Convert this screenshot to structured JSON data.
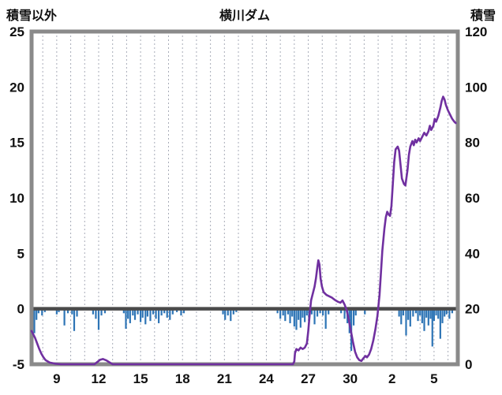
{
  "header": {
    "left_axis_title": "積雪以外",
    "chart_title": "横川ダム",
    "right_axis_title": "積雪"
  },
  "chart_data": {
    "type": "combo-bar-line",
    "title": "横川ダム",
    "left_axis": {
      "label": "積雪以外",
      "min": -5,
      "max": 25,
      "ticks": [
        25,
        20,
        15,
        10,
        5,
        0,
        -5
      ]
    },
    "right_axis": {
      "label": "積雪",
      "min": 0,
      "max": 120,
      "ticks": [
        120,
        100,
        80,
        60,
        40,
        20,
        0
      ]
    },
    "x_axis": {
      "domain_min": 7.2,
      "domain_max": 37.7,
      "tick_positions": [
        9,
        12,
        15,
        18,
        21,
        24,
        27,
        30,
        33,
        36
      ],
      "tick_labels": [
        "9",
        "12",
        "15",
        "18",
        "21",
        "24",
        "27",
        "30",
        "2",
        "5"
      ],
      "gridline_start": 8,
      "gridline_end": 37
    },
    "colors": {
      "line": "#7030A0",
      "bars": "#2E75B6",
      "frame": "#8A8A8A",
      "grid": "#A8ACB8",
      "zero_line": "#4A4A4A",
      "text": "#111111",
      "background": "#FFFFFF"
    },
    "series": [
      {
        "name": "積雪",
        "type": "line",
        "axis": "right",
        "points": [
          [
            7.2,
            12
          ],
          [
            7.3,
            11
          ],
          [
            7.45,
            9.5
          ],
          [
            7.6,
            7.5
          ],
          [
            7.75,
            5.5
          ],
          [
            7.9,
            3.8
          ],
          [
            8.05,
            2.5
          ],
          [
            8.2,
            1.5
          ],
          [
            8.5,
            0.6
          ],
          [
            8.9,
            0.2
          ],
          [
            9.3,
            0
          ],
          [
            11.7,
            0
          ],
          [
            11.9,
            0.8
          ],
          [
            12.1,
            1.6
          ],
          [
            12.3,
            1.9
          ],
          [
            12.55,
            1.4
          ],
          [
            12.8,
            0.6
          ],
          [
            13.0,
            0
          ],
          [
            25.9,
            0
          ],
          [
            26.0,
            1
          ],
          [
            26.05,
            4
          ],
          [
            26.15,
            5.5
          ],
          [
            26.3,
            5
          ],
          [
            26.45,
            6
          ],
          [
            26.6,
            5.5
          ],
          [
            26.75,
            6
          ],
          [
            26.9,
            7.5
          ],
          [
            27.0,
            12
          ],
          [
            27.1,
            18
          ],
          [
            27.2,
            23
          ],
          [
            27.3,
            25
          ],
          [
            27.45,
            28
          ],
          [
            27.55,
            31
          ],
          [
            27.65,
            35
          ],
          [
            27.72,
            37.5
          ],
          [
            27.8,
            36
          ],
          [
            27.88,
            31
          ],
          [
            27.98,
            28
          ],
          [
            28.1,
            26
          ],
          [
            28.3,
            25
          ],
          [
            28.5,
            24.5
          ],
          [
            28.7,
            24
          ],
          [
            28.9,
            23.2
          ],
          [
            29.1,
            22.6
          ],
          [
            29.3,
            22.2
          ],
          [
            29.45,
            23
          ],
          [
            29.6,
            21.5
          ],
          [
            29.75,
            19.5
          ],
          [
            29.9,
            16
          ],
          [
            30.05,
            12
          ],
          [
            30.2,
            8
          ],
          [
            30.35,
            4.5
          ],
          [
            30.5,
            2.5
          ],
          [
            30.65,
            1.5
          ],
          [
            30.8,
            1.2
          ],
          [
            30.95,
            2.2
          ],
          [
            31.1,
            3
          ],
          [
            31.2,
            2.5
          ],
          [
            31.35,
            3.5
          ],
          [
            31.5,
            5.5
          ],
          [
            31.65,
            8.5
          ],
          [
            31.8,
            12.5
          ],
          [
            31.95,
            17.5
          ],
          [
            32.1,
            25
          ],
          [
            32.2,
            33
          ],
          [
            32.3,
            41
          ],
          [
            32.45,
            49
          ],
          [
            32.55,
            53
          ],
          [
            32.65,
            55
          ],
          [
            32.75,
            54
          ],
          [
            32.85,
            53.5
          ],
          [
            32.95,
            57
          ],
          [
            33.05,
            65
          ],
          [
            33.15,
            73
          ],
          [
            33.25,
            77.5
          ],
          [
            33.4,
            78.5
          ],
          [
            33.5,
            77
          ],
          [
            33.6,
            72
          ],
          [
            33.7,
            67
          ],
          [
            33.85,
            65
          ],
          [
            33.95,
            64.5
          ],
          [
            34.1,
            70
          ],
          [
            34.2,
            75.5
          ],
          [
            34.3,
            78.5
          ],
          [
            34.45,
            80.5
          ],
          [
            34.55,
            79
          ],
          [
            34.65,
            81
          ],
          [
            34.75,
            80
          ],
          [
            34.9,
            81.5
          ],
          [
            35.0,
            80.5
          ],
          [
            35.15,
            82
          ],
          [
            35.3,
            83.5
          ],
          [
            35.45,
            82.5
          ],
          [
            35.6,
            84
          ],
          [
            35.7,
            86
          ],
          [
            35.8,
            84.5
          ],
          [
            35.95,
            86
          ],
          [
            36.05,
            88.5
          ],
          [
            36.15,
            87.5
          ],
          [
            36.3,
            89.5
          ],
          [
            36.45,
            92.5
          ],
          [
            36.55,
            95
          ],
          [
            36.65,
            96.5
          ],
          [
            36.75,
            95.5
          ],
          [
            36.85,
            93.5
          ],
          [
            37.0,
            91.5
          ],
          [
            37.15,
            90
          ],
          [
            37.3,
            88.5
          ],
          [
            37.45,
            87.5
          ],
          [
            37.55,
            87
          ]
        ]
      },
      {
        "name": "積雪以外",
        "type": "bar",
        "axis": "left",
        "points": [
          [
            7.3,
            -0.7
          ],
          [
            7.4,
            -2.2
          ],
          [
            7.55,
            -1.0
          ],
          [
            7.7,
            -0.4
          ],
          [
            7.95,
            -0.6
          ],
          [
            8.15,
            -0.3
          ],
          [
            9.0,
            -0.5
          ],
          [
            9.15,
            -0.3
          ],
          [
            9.55,
            -1.5
          ],
          [
            9.8,
            -0.4
          ],
          [
            10.1,
            -0.5
          ],
          [
            10.25,
            -2.0
          ],
          [
            10.45,
            -0.7
          ],
          [
            11.6,
            -0.5
          ],
          [
            11.8,
            -0.9
          ],
          [
            12.0,
            -1.9
          ],
          [
            12.2,
            -0.6
          ],
          [
            12.45,
            -0.4
          ],
          [
            13.8,
            -0.4
          ],
          [
            13.95,
            -1.8
          ],
          [
            14.1,
            -0.9
          ],
          [
            14.25,
            -1.3
          ],
          [
            14.45,
            -0.6
          ],
          [
            14.6,
            -1.0
          ],
          [
            14.8,
            -0.5
          ],
          [
            15.0,
            -1.2
          ],
          [
            15.15,
            -0.8
          ],
          [
            15.35,
            -1.4
          ],
          [
            15.5,
            -0.7
          ],
          [
            15.7,
            -1.1
          ],
          [
            15.9,
            -0.5
          ],
          [
            16.1,
            -0.9
          ],
          [
            16.3,
            -1.3
          ],
          [
            16.5,
            -0.6
          ],
          [
            16.7,
            -0.4
          ],
          [
            16.9,
            -0.8
          ],
          [
            17.1,
            -1.0
          ],
          [
            17.3,
            -0.5
          ],
          [
            17.6,
            -0.3
          ],
          [
            17.9,
            -0.6
          ],
          [
            18.1,
            -0.4
          ],
          [
            20.9,
            -0.5
          ],
          [
            21.05,
            -1.0
          ],
          [
            21.25,
            -0.6
          ],
          [
            21.45,
            -1.1
          ],
          [
            21.65,
            -0.5
          ],
          [
            21.85,
            -0.3
          ],
          [
            24.8,
            -0.4
          ],
          [
            25.0,
            -0.9
          ],
          [
            25.2,
            -0.6
          ],
          [
            25.35,
            -1.1
          ],
          [
            25.55,
            -0.5
          ],
          [
            25.7,
            -1.3
          ],
          [
            25.85,
            -0.7
          ],
          [
            26.0,
            -1.6
          ],
          [
            26.15,
            -1.9
          ],
          [
            26.3,
            -1.0
          ],
          [
            26.45,
            -1.7
          ],
          [
            26.6,
            -0.8
          ],
          [
            26.75,
            -1.2
          ],
          [
            26.9,
            -0.6
          ],
          [
            27.05,
            -1.0
          ],
          [
            27.25,
            -0.5
          ],
          [
            27.45,
            -1.4
          ],
          [
            27.65,
            -0.7
          ],
          [
            27.85,
            -0.4
          ],
          [
            28.05,
            -0.6
          ],
          [
            28.25,
            -1.8
          ],
          [
            28.45,
            -0.5
          ],
          [
            29.35,
            -0.4
          ],
          [
            29.6,
            -0.9
          ],
          [
            29.8,
            -1.3
          ],
          [
            29.95,
            -2.2
          ],
          [
            30.08,
            -3.8
          ],
          [
            30.25,
            -1.5
          ],
          [
            30.4,
            -0.6
          ],
          [
            31.05,
            -0.5
          ],
          [
            33.5,
            -0.7
          ],
          [
            33.65,
            -1.4
          ],
          [
            33.8,
            -0.6
          ],
          [
            34.0,
            -2.4
          ],
          [
            34.15,
            -1.0
          ],
          [
            34.3,
            -1.6
          ],
          [
            34.5,
            -0.7
          ],
          [
            34.7,
            -0.4
          ],
          [
            34.85,
            -1.1
          ],
          [
            35.0,
            -0.6
          ],
          [
            35.15,
            -1.3
          ],
          [
            35.3,
            -2.0
          ],
          [
            35.45,
            -0.8
          ],
          [
            35.6,
            -1.5
          ],
          [
            35.75,
            -0.9
          ],
          [
            35.88,
            -3.4
          ],
          [
            36.0,
            -1.1
          ],
          [
            36.15,
            -0.6
          ],
          [
            36.3,
            -0.9
          ],
          [
            36.45,
            -2.7
          ],
          [
            36.6,
            -1.3
          ],
          [
            36.75,
            -0.7
          ],
          [
            36.9,
            -0.5
          ],
          [
            37.1,
            -0.9
          ],
          [
            37.3,
            -0.4
          ]
        ]
      }
    ]
  }
}
